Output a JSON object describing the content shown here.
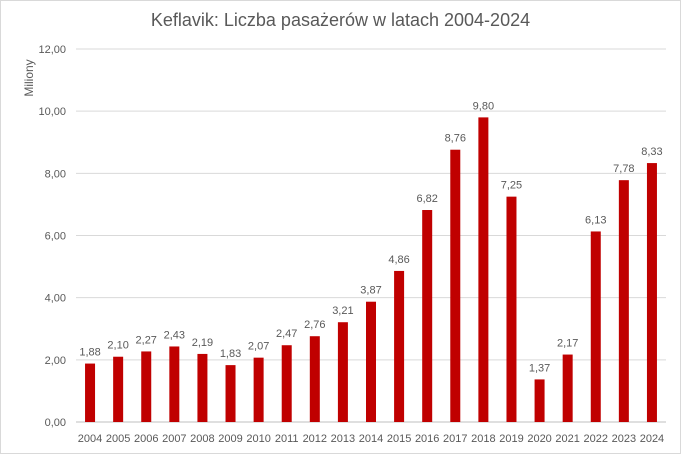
{
  "chart_data": {
    "type": "bar",
    "title": "Keflavik: Liczba pasażerów  w latach 2004-2024",
    "ylabel": "Miliony",
    "xlabel": "",
    "ylim": [
      0,
      12
    ],
    "yticks": [
      "0,00",
      "2,00",
      "4,00",
      "6,00",
      "8,00",
      "10,00",
      "12,00"
    ],
    "grid": true,
    "bar_color": "#c00000",
    "categories": [
      "2004",
      "2005",
      "2006",
      "2007",
      "2008",
      "2009",
      "2010",
      "2011",
      "2012",
      "2013",
      "2014",
      "2015",
      "2016",
      "2017",
      "2018",
      "2019",
      "2020",
      "2021",
      "2022",
      "2023",
      "2024"
    ],
    "values": [
      1.88,
      2.1,
      2.27,
      2.43,
      2.19,
      1.83,
      2.07,
      2.47,
      2.76,
      3.21,
      3.87,
      4.86,
      6.82,
      8.76,
      9.8,
      7.25,
      1.37,
      2.17,
      6.13,
      7.78,
      8.33
    ],
    "data_labels": [
      "1,88",
      "2,10",
      "2,27",
      "2,43",
      "2,19",
      "1,83",
      "2,07",
      "2,47",
      "2,76",
      "3,21",
      "3,87",
      "4,86",
      "6,82",
      "8,76",
      "9,80",
      "7,25",
      "1,37",
      "2,17",
      "6,13",
      "7,78",
      "8,33"
    ]
  }
}
